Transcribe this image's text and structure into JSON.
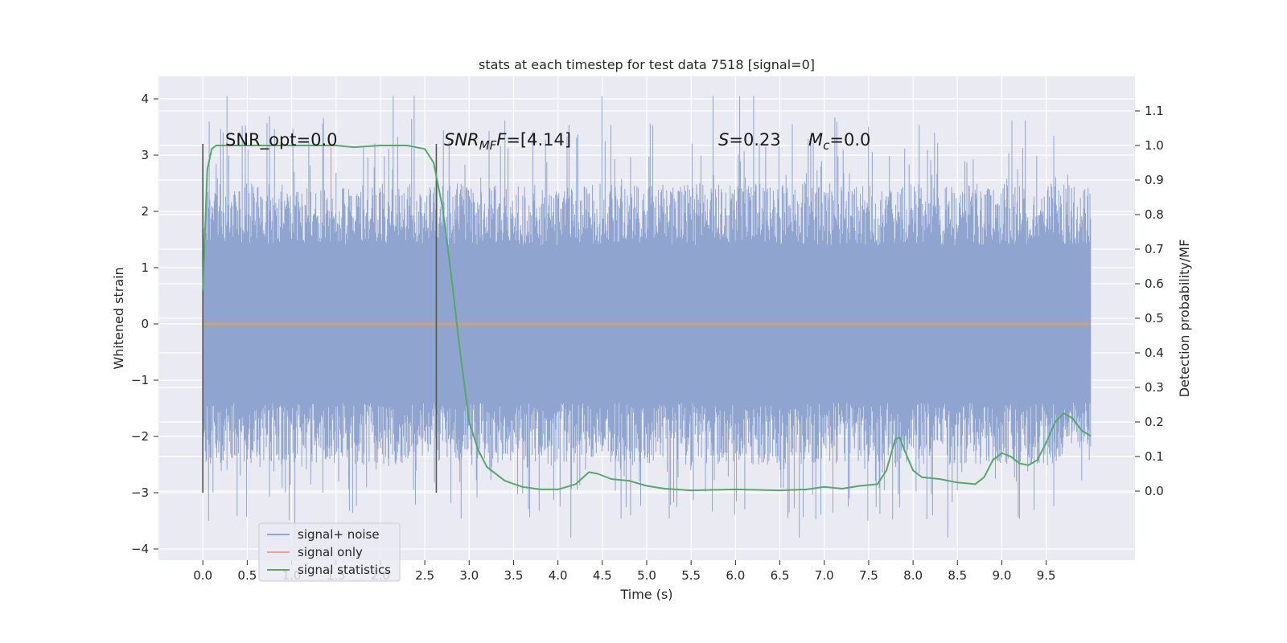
{
  "chart_data": {
    "type": "line",
    "title": "stats at each timestep for test data 7518 [signal=0]",
    "xlabel": "Time (s)",
    "ylabel_left": "Whitened strain",
    "ylabel_right": "Detection probability/MF",
    "xlim": [
      -0.5,
      10.5
    ],
    "ylim_left": [
      -4.2,
      4.4
    ],
    "ylim_right": [
      -0.2,
      1.2
    ],
    "xticks": [
      0.0,
      0.5,
      1.0,
      1.5,
      2.0,
      2.5,
      3.0,
      3.5,
      4.0,
      4.5,
      5.0,
      5.5,
      6.0,
      6.5,
      7.0,
      7.5,
      8.0,
      8.5,
      9.0,
      9.5
    ],
    "xtick_labels": [
      "0.0",
      "0.5",
      "1.0",
      "1.5",
      "2.0",
      "2.5",
      "3.0",
      "3.5",
      "4.0",
      "4.5",
      "5.0",
      "5.5",
      "6.0",
      "6.5",
      "7.0",
      "7.5",
      "8.0",
      "8.5",
      "9.0",
      "9.5"
    ],
    "yticks_left": [
      -4,
      -3,
      -2,
      -1,
      0,
      1,
      2,
      3,
      4
    ],
    "ytick_labels_left": [
      "−4",
      "−3",
      "−2",
      "−1",
      "0",
      "1",
      "2",
      "3",
      "4"
    ],
    "yticks_right": [
      0.0,
      0.1,
      0.2,
      0.3,
      0.4,
      0.5,
      0.6,
      0.7,
      0.8,
      0.9,
      1.0,
      1.1
    ],
    "ytick_labels_right": [
      "0.0",
      "0.1",
      "0.2",
      "0.3",
      "0.4",
      "0.5",
      "0.6",
      "0.7",
      "0.8",
      "0.9",
      "1.0",
      "1.1"
    ],
    "grid": true,
    "legend": {
      "placement": "lower-left",
      "entries": [
        {
          "name": "signal+ noise",
          "color": "#8fa4cf"
        },
        {
          "name": "signal only",
          "color": "#e4a88e"
        },
        {
          "name": "signal statistics",
          "color": "#55a868"
        }
      ]
    },
    "annotations": {
      "snr_opt": "SNR_opt=0.0",
      "snr_mf_main": "SNR",
      "snr_mf_sub": "MF",
      "snr_mf_value": "=[4.14]",
      "s_label": "S",
      "s_value": "=0.23",
      "mc_main": "M",
      "mc_sub": "c",
      "mc_value": "=0.0"
    },
    "vertical_markers": [
      {
        "x": 0.0,
        "y_range": [
          -3.0,
          3.2
        ]
      },
      {
        "x": 2.63,
        "y_range": [
          -3.0,
          3.2
        ]
      }
    ],
    "noise_series": {
      "name": "signal+ noise",
      "color": "#8fa4cf",
      "x_range": [
        0.0,
        10.0
      ],
      "typical_range": [
        -2.4,
        2.4
      ],
      "extreme_range": [
        -3.8,
        4.05
      ]
    },
    "signal_only": {
      "name": "signal only",
      "color": "#e4a88e",
      "value": 0.0
    },
    "statistics_series": {
      "name": "signal statistics",
      "color": "#55a868",
      "x": [
        0.0,
        0.05,
        0.1,
        0.15,
        0.2,
        0.3,
        0.5,
        1.0,
        1.5,
        1.7,
        2.0,
        2.3,
        2.5,
        2.6,
        2.7,
        2.8,
        2.9,
        3.0,
        3.1,
        3.2,
        3.4,
        3.6,
        3.8,
        4.0,
        4.2,
        4.35,
        4.45,
        4.6,
        4.8,
        5.0,
        5.2,
        5.5,
        6.0,
        6.5,
        6.8,
        7.0,
        7.2,
        7.4,
        7.6,
        7.7,
        7.8,
        7.85,
        7.9,
        8.0,
        8.1,
        8.3,
        8.5,
        8.7,
        8.8,
        8.9,
        9.0,
        9.1,
        9.2,
        9.3,
        9.4,
        9.5,
        9.6,
        9.7,
        9.8,
        9.9,
        10.0
      ],
      "y": [
        0.58,
        0.93,
        0.99,
        1.0,
        1.0,
        1.0,
        1.0,
        1.0,
        1.0,
        0.995,
        1.0,
        1.0,
        0.99,
        0.95,
        0.82,
        0.62,
        0.4,
        0.2,
        0.12,
        0.07,
        0.03,
        0.012,
        0.005,
        0.005,
        0.02,
        0.055,
        0.05,
        0.035,
        0.03,
        0.015,
        0.007,
        0.002,
        0.005,
        0.002,
        0.005,
        0.012,
        0.007,
        0.015,
        0.02,
        0.06,
        0.15,
        0.155,
        0.12,
        0.06,
        0.04,
        0.035,
        0.025,
        0.02,
        0.04,
        0.09,
        0.11,
        0.1,
        0.08,
        0.075,
        0.09,
        0.14,
        0.2,
        0.225,
        0.21,
        0.175,
        0.16
      ]
    }
  }
}
